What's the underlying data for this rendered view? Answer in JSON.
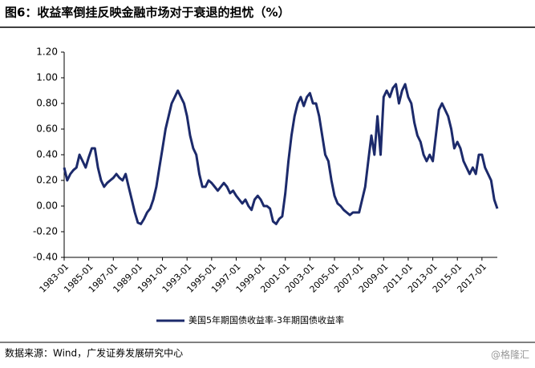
{
  "chart_data": {
    "type": "line",
    "title": "图6：收益率倒挂反映金融市场对于衰退的担忧（%）",
    "source": "数据来源：Wind，广发证券发展研究中心",
    "watermark": "@格隆汇",
    "categories": [
      "1983-01",
      null,
      null,
      null,
      null,
      null,
      null,
      null,
      "1985-01",
      null,
      null,
      null,
      null,
      null,
      null,
      null,
      "1987-01",
      null,
      null,
      null,
      null,
      null,
      null,
      null,
      "1989-01",
      null,
      null,
      null,
      null,
      null,
      null,
      null,
      "1991-01",
      null,
      null,
      null,
      null,
      null,
      null,
      null,
      "1993-01",
      null,
      null,
      null,
      null,
      null,
      null,
      null,
      "1995-01",
      null,
      null,
      null,
      null,
      null,
      null,
      null,
      "1997-01",
      null,
      null,
      null,
      null,
      null,
      null,
      null,
      "1999-01",
      null,
      null,
      null,
      null,
      null,
      null,
      null,
      "2001-01",
      null,
      null,
      null,
      null,
      null,
      null,
      null,
      "2003-01",
      null,
      null,
      null,
      null,
      null,
      null,
      null,
      "2005-01",
      null,
      null,
      null,
      null,
      null,
      null,
      null,
      "2007-01",
      null,
      null,
      null,
      null,
      null,
      null,
      null,
      "2009-01",
      null,
      null,
      null,
      null,
      null,
      null,
      null,
      "2011-01",
      null,
      null,
      null,
      null,
      null,
      null,
      null,
      "2013-01",
      null,
      null,
      null,
      null,
      null,
      null,
      null,
      "2015-01",
      null,
      null,
      null,
      null,
      null,
      null,
      null,
      "2017-01",
      null,
      null,
      null,
      null,
      null
    ],
    "series": [
      {
        "name": "美国5年期国债收益率-3年期国债收益率",
        "color": "#1c2a6b",
        "values": [
          0.3,
          0.2,
          0.25,
          0.28,
          0.3,
          0.4,
          0.35,
          0.3,
          0.38,
          0.45,
          0.45,
          0.3,
          0.2,
          0.15,
          0.18,
          0.2,
          0.22,
          0.25,
          0.22,
          0.2,
          0.25,
          0.15,
          0.05,
          -0.05,
          -0.13,
          -0.14,
          -0.1,
          -0.05,
          -0.02,
          0.05,
          0.15,
          0.3,
          0.45,
          0.6,
          0.7,
          0.8,
          0.85,
          0.9,
          0.85,
          0.8,
          0.7,
          0.55,
          0.45,
          0.4,
          0.25,
          0.15,
          0.15,
          0.2,
          0.18,
          0.15,
          0.12,
          0.15,
          0.18,
          0.15,
          0.1,
          0.12,
          0.08,
          0.05,
          0.02,
          0.05,
          0.0,
          -0.03,
          0.05,
          0.08,
          0.05,
          0.0,
          0.0,
          -0.02,
          -0.12,
          -0.14,
          -0.1,
          -0.08,
          0.1,
          0.35,
          0.55,
          0.7,
          0.8,
          0.85,
          0.78,
          0.85,
          0.88,
          0.8,
          0.8,
          0.7,
          0.55,
          0.4,
          0.35,
          0.2,
          0.08,
          0.02,
          0.0,
          -0.03,
          -0.05,
          -0.07,
          -0.05,
          -0.05,
          -0.05,
          0.05,
          0.15,
          0.35,
          0.55,
          0.4,
          0.7,
          0.4,
          0.85,
          0.9,
          0.85,
          0.92,
          0.95,
          0.8,
          0.9,
          0.95,
          0.85,
          0.8,
          0.65,
          0.55,
          0.5,
          0.4,
          0.35,
          0.4,
          0.35,
          0.55,
          0.75,
          0.8,
          0.75,
          0.7,
          0.6,
          0.45,
          0.5,
          0.45,
          0.35,
          0.3,
          0.25,
          0.3,
          0.25,
          0.4,
          0.4,
          0.3,
          0.25,
          0.2,
          0.05,
          -0.02
        ]
      }
    ],
    "ylim": [
      -0.4,
      1.2
    ],
    "yticks": [
      {
        "value": -0.4,
        "label": "-0.40"
      },
      {
        "value": -0.2,
        "label": "-0.20"
      },
      {
        "value": 0,
        "label": "0.00"
      },
      {
        "value": 0.2,
        "label": "0.20"
      },
      {
        "value": 0.4,
        "label": "0.40"
      },
      {
        "value": 0.6,
        "label": "0.60"
      },
      {
        "value": 0.8,
        "label": "0.80"
      },
      {
        "value": 1.0,
        "label": "1.00"
      },
      {
        "value": 1.2,
        "label": "1.20"
      }
    ],
    "grid": false,
    "legend": "bottom"
  }
}
